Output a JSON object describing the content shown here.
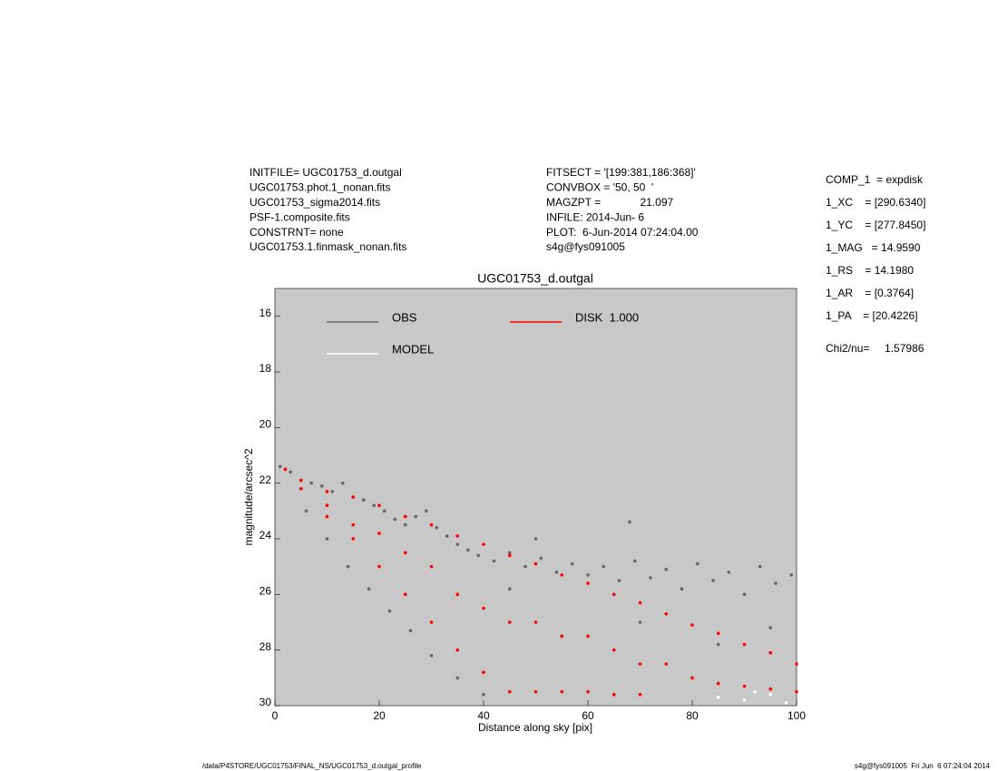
{
  "header": {
    "left": [
      "INITFILE= UGC01753_d.outgal",
      "UGC01753.phot.1_nonan.fits",
      "UGC01753_sigma2014.fits",
      "PSF-1.composite.fits",
      "CONSTRNT= none",
      "UGC01753.1.finmask_nonan.fits"
    ],
    "middle": [
      "FITSECT = '[199:381,186:368]'",
      "CONVBOX = '50, 50  '",
      "MAGZPT =             21.097",
      "INFILE: 2014-Jun- 6",
      "PLOT:  6-Jun-2014 07:24:04.00",
      "s4g@fys091005"
    ],
    "right": [
      "COMP_1  = expdisk",
      "1_XC    = [290.6340]",
      "1_YC    = [277.8450]",
      "1_MAG   = 14.9590",
      "1_RS    = 14.1980",
      "1_AR    = [0.3764]",
      "1_PA    = [20.4226]"
    ],
    "chi": "Chi2/nu=     1.57986"
  },
  "footer": {
    "left": "/data/P4STORE/UGC01753/FINAL_NS/UGC01753_d.outgal_profile",
    "right": "s4g@fys091005  Fri Jun  6 07:24:04 2014"
  },
  "chart_data": {
    "type": "scatter",
    "title": "UGC01753_d.outgal",
    "x_label": "Distance along sky [pix]",
    "y_label": "magnitude/arcsec^2",
    "xlim": [
      0,
      100
    ],
    "xticks": [
      0,
      20,
      40,
      60,
      80,
      100
    ],
    "ylim": [
      15,
      30
    ],
    "yticks": [
      16,
      18,
      20,
      22,
      24,
      26,
      28,
      30
    ],
    "y_inverted": true,
    "grid": false,
    "series": [
      {
        "name": "OBS",
        "color": "#666666",
        "x": [
          1,
          3,
          5,
          7,
          9,
          11,
          13,
          15,
          17,
          19,
          21,
          23,
          25,
          27,
          29,
          31,
          33,
          35,
          37,
          39,
          42,
          45,
          48,
          51,
          54,
          57,
          60,
          63,
          66,
          69,
          72,
          75,
          78,
          81,
          84,
          87,
          90,
          93,
          96,
          99,
          6,
          10,
          14,
          18,
          22,
          26,
          30,
          35,
          40,
          55,
          70,
          85,
          95,
          68,
          50,
          45
        ],
        "values": [
          21.4,
          21.6,
          21.9,
          22.0,
          22.1,
          22.3,
          22.0,
          22.5,
          22.6,
          22.8,
          23.0,
          23.3,
          23.5,
          23.2,
          23.0,
          23.6,
          23.9,
          24.2,
          24.4,
          24.6,
          24.8,
          24.5,
          25.0,
          24.7,
          25.2,
          24.9,
          25.3,
          25.0,
          25.5,
          24.8,
          25.4,
          25.1,
          25.8,
          24.9,
          25.5,
          25.2,
          26.0,
          25.0,
          25.6,
          25.3,
          23.0,
          24.0,
          25.0,
          25.8,
          26.6,
          27.3,
          28.2,
          29.0,
          29.6,
          27.5,
          27.0,
          27.8,
          27.2,
          23.4,
          24.0,
          25.8
        ]
      },
      {
        "name": "MODEL",
        "color": "#ffffff",
        "x": [
          85,
          90,
          95,
          98,
          92
        ],
        "values": [
          29.7,
          29.8,
          29.6,
          29.9,
          29.5
        ]
      },
      {
        "name": "DISK  1.000",
        "color": "#ff0000",
        "x": [
          2,
          5,
          5,
          10,
          10,
          10,
          15,
          15,
          15,
          20,
          20,
          20,
          25,
          25,
          25,
          30,
          30,
          30,
          35,
          35,
          35,
          40,
          40,
          40,
          45,
          45,
          45,
          50,
          50,
          50,
          55,
          55,
          55,
          60,
          60,
          60,
          65,
          65,
          65,
          70,
          70,
          70,
          75,
          75,
          80,
          80,
          85,
          85,
          90,
          90,
          95,
          95,
          100,
          100
        ],
        "values": [
          21.5,
          21.9,
          22.2,
          22.3,
          22.8,
          23.2,
          22.5,
          23.5,
          24.0,
          22.8,
          23.8,
          25.0,
          23.2,
          24.5,
          26.0,
          23.5,
          25.0,
          27.0,
          23.9,
          26.0,
          28.0,
          24.2,
          26.5,
          28.8,
          24.6,
          27.0,
          29.5,
          24.9,
          27.0,
          29.5,
          25.3,
          27.5,
          29.5,
          25.6,
          27.5,
          29.5,
          26.0,
          28.0,
          29.6,
          26.3,
          28.5,
          29.6,
          26.7,
          28.5,
          27.1,
          29.0,
          27.4,
          29.2,
          27.8,
          29.3,
          28.1,
          29.4,
          28.5,
          29.5
        ]
      }
    ]
  }
}
